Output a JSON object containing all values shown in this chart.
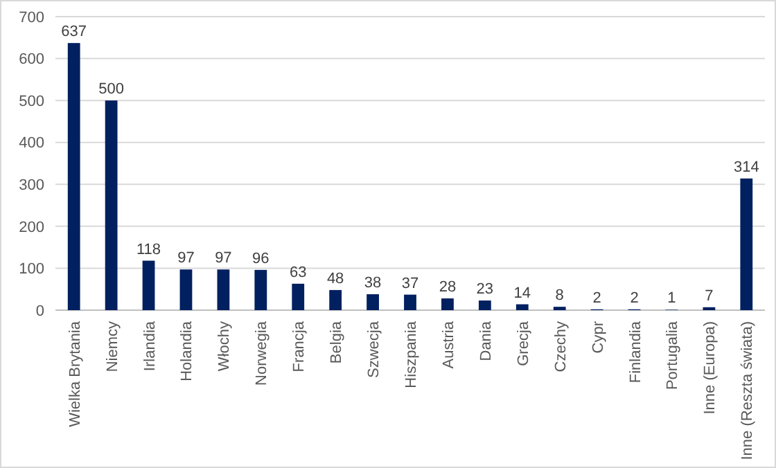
{
  "chart_data": {
    "type": "bar",
    "categories": [
      "Wielka Brytania",
      "Niemcy",
      "Irlandia",
      "Holandia",
      "Włochy",
      "Norwegia",
      "Francja",
      "Belgia",
      "Szwecja",
      "Hiszpania",
      "Austria",
      "Dania",
      "Grecja",
      "Czechy",
      "Cypr",
      "Finlandia",
      "Portugalia",
      "Inne (Europa)",
      "Inne (Reszta świata)"
    ],
    "values": [
      637,
      500,
      118,
      97,
      97,
      96,
      63,
      48,
      38,
      37,
      28,
      23,
      14,
      8,
      2,
      2,
      1,
      7,
      314
    ],
    "color": "#002060",
    "ylim": [
      0,
      700
    ],
    "yticks": [
      0,
      100,
      200,
      300,
      400,
      500,
      600,
      700
    ],
    "grid": "y",
    "data_labels": true
  }
}
